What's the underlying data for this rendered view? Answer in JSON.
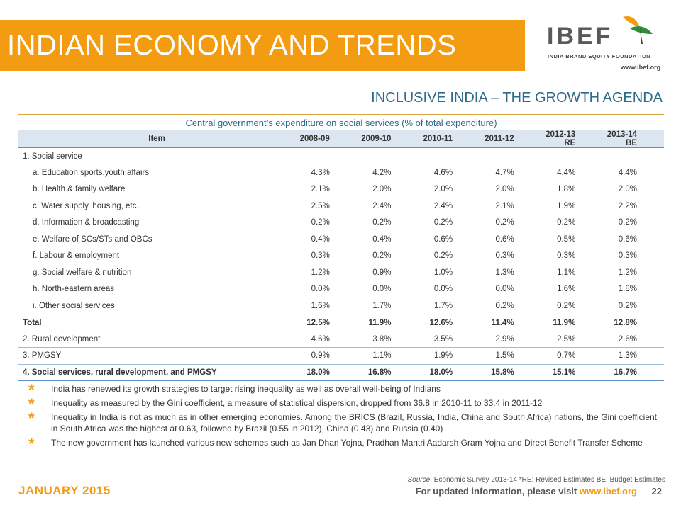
{
  "header": {
    "title": "INDIAN ECONOMY AND TRENDS",
    "logo_brand": "IBEF",
    "logo_tagline": "INDIA BRAND EQUITY FOUNDATION",
    "logo_url": "www.ibef.org"
  },
  "subtitle": "INCLUSIVE INDIA – THE GROWTH AGENDA",
  "table": {
    "title": "Central government’s expenditure on social services (% of total expenditure)",
    "columns": [
      "Item",
      "2008-09",
      "2009-10",
      "2010-11",
      "2011-12",
      "2012-13  RE",
      "2013-14  BE"
    ],
    "rows": [
      {
        "label": "1. Social service",
        "values": [
          "",
          "",
          "",
          "",
          "",
          ""
        ]
      },
      {
        "label": "a. Education,sports,youth affairs",
        "values": [
          "4.3%",
          "4.2%",
          "4.6%",
          "4.7%",
          "4.4%",
          "4.4%"
        ]
      },
      {
        "label": "b. Health & family welfare",
        "values": [
          "2.1%",
          "2.0%",
          "2.0%",
          "2.0%",
          "1.8%",
          "2.0%"
        ]
      },
      {
        "label": "c. Water supply, housing, etc.",
        "values": [
          "2.5%",
          "2.4%",
          "2.4%",
          "2.1%",
          "1.9%",
          "2.2%"
        ]
      },
      {
        "label": "d. Information & broadcasting",
        "values": [
          "0.2%",
          "0.2%",
          "0.2%",
          "0.2%",
          "0.2%",
          "0.2%"
        ]
      },
      {
        "label": "e. Welfare of SCs/STs and OBCs",
        "values": [
          "0.4%",
          "0.4%",
          "0.6%",
          "0.6%",
          "0.5%",
          "0.6%"
        ]
      },
      {
        "label": "f. Labour & employment",
        "values": [
          "0.3%",
          "0.2%",
          "0.2%",
          "0.3%",
          "0.3%",
          "0.3%"
        ]
      },
      {
        "label": "g. Social welfare & nutrition",
        "values": [
          "1.2%",
          "0.9%",
          "1.0%",
          "1.3%",
          "1.1%",
          "1.2%"
        ]
      },
      {
        "label": "h. North-eastern areas",
        "values": [
          "0.0%",
          "0.0%",
          "0.0%",
          "0.0%",
          "1.6%",
          "1.8%"
        ]
      },
      {
        "label": "i. Other social services",
        "values": [
          "1.6%",
          "1.7%",
          "1.7%",
          "0.2%",
          "0.2%",
          "0.2%"
        ]
      },
      {
        "label": "Total",
        "values": [
          "12.5%",
          "11.9%",
          "12.6%",
          "11.4%",
          "11.9%",
          "12.8%"
        ]
      },
      {
        "label": "2. Rural development",
        "values": [
          "4.6%",
          "3.8%",
          "3.5%",
          "2.9%",
          "2.5%",
          "2.6%"
        ]
      },
      {
        "label": "3. PMGSY",
        "values": [
          "0.9%",
          "1.1%",
          "1.9%",
          "1.5%",
          "0.7%",
          "1.3%"
        ]
      },
      {
        "label": "4. Social services, rural development, and PMGSY",
        "values": [
          "18.0%",
          "16.8%",
          "18.0%",
          "15.8%",
          "15.1%",
          "16.7%"
        ]
      }
    ]
  },
  "bullets": [
    "India has renewed its growth strategies to target rising inequality as well as overall well-being of Indians",
    "Inequality as measured by the Gini coefficient, a measure of statistical dispersion, dropped from 36.8 in 2010-11 to 33.4 in 2011-12",
    "Inequality in India is not as much as in other emerging economies. Among the BRICS (Brazil, Russia, India, China and South Africa) nations, the Gini coefficient in South Africa was the highest at 0.63, followed by Brazil (0.55 in 2012), China (0.43) and Russia (0.40)",
    "The new government has launched various new schemes such as Jan Dhan Yojna, Pradhan Mantri Aadarsh Gram Yojna and Direct Benefit Transfer Scheme"
  ],
  "bullet_marker": "*",
  "source": {
    "label": "Source",
    "text": ": Economic Survey 2013-14 *RE: Revised Estimates BE: Budget Estimates"
  },
  "footer": {
    "date": "JANUARY 2015",
    "info_text": "For updated information, please visit ",
    "info_link": "www.ibef.org",
    "page_number": "22"
  },
  "colors": {
    "accent_orange": "#f39c12",
    "title_blue": "#2e6b8a",
    "table_header_bg": "#dce6f1",
    "table_rule": "#5b8fc7"
  },
  "icons": [
    "ibef-flag-logo-icon",
    "bullet-star-icon"
  ]
}
